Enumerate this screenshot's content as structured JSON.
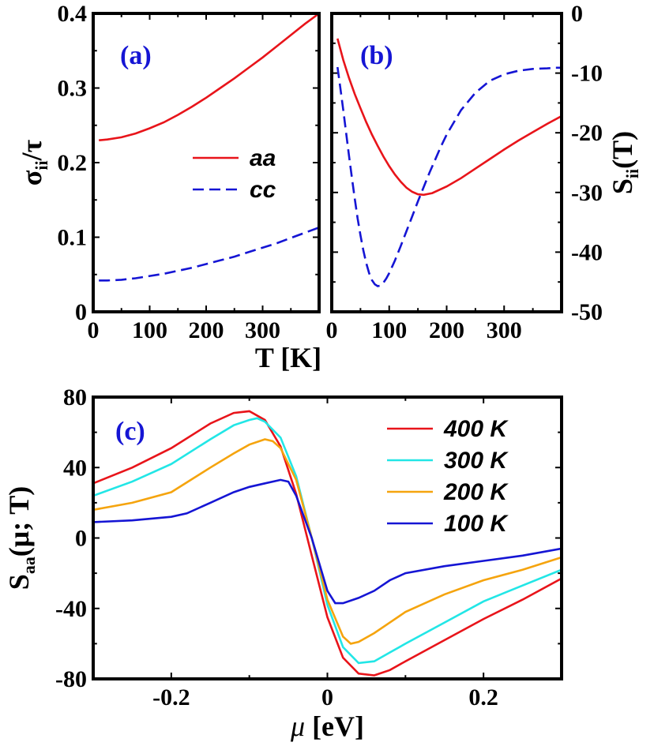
{
  "chart_data": [
    {
      "id": "a",
      "type": "line",
      "panel_label": "(a)",
      "xlim": [
        0,
        400
      ],
      "ylim": [
        0,
        0.4
      ],
      "xticks": [
        0,
        100,
        200,
        300
      ],
      "xtick_labels": [
        "0",
        "100",
        "200",
        "300"
      ],
      "yticks": [
        0,
        0.1,
        0.2,
        0.3,
        0.4
      ],
      "ytick_labels": [
        "0",
        "0.1",
        "0.2",
        "0.3",
        "0.4"
      ],
      "ylabel": {
        "main": "σ",
        "sub": "ii",
        "rest": "/τ"
      },
      "legend_position": "center-right",
      "series": [
        {
          "name": "aa",
          "color": "#e8141a",
          "dash": "solid",
          "x": [
            10,
            25,
            50,
            75,
            100,
            125,
            150,
            175,
            200,
            225,
            250,
            275,
            300,
            325,
            350,
            375,
            400
          ],
          "y": [
            0.23,
            0.231,
            0.234,
            0.239,
            0.246,
            0.254,
            0.264,
            0.275,
            0.287,
            0.3,
            0.313,
            0.327,
            0.341,
            0.356,
            0.371,
            0.386,
            0.4
          ]
        },
        {
          "name": "cc",
          "color": "#1515d4",
          "dash": "dashed",
          "x": [
            10,
            25,
            50,
            75,
            100,
            125,
            150,
            175,
            200,
            225,
            250,
            275,
            300,
            325,
            350,
            375,
            400
          ],
          "y": [
            0.042,
            0.042,
            0.043,
            0.045,
            0.048,
            0.051,
            0.055,
            0.059,
            0.064,
            0.069,
            0.074,
            0.08,
            0.086,
            0.092,
            0.099,
            0.106,
            0.113
          ]
        }
      ]
    },
    {
      "id": "b",
      "type": "line",
      "panel_label": "(b)",
      "xlim": [
        0,
        400
      ],
      "ylim": [
        -50,
        0
      ],
      "xticks": [
        0,
        100,
        200,
        300
      ],
      "xtick_labels": [
        "0",
        "100",
        "200",
        "300"
      ],
      "yticks": [
        -50,
        -40,
        -30,
        -20,
        -10,
        0
      ],
      "ytick_labels": [
        "-50",
        "-40",
        "-30",
        "-20",
        "-10",
        "0"
      ],
      "ylabel": {
        "main": "S",
        "sub": "ii",
        "rest": "(T)"
      },
      "series": [
        {
          "name": "aa",
          "color": "#e8141a",
          "dash": "solid",
          "x": [
            10,
            20,
            30,
            40,
            50,
            60,
            70,
            80,
            90,
            100,
            110,
            120,
            130,
            140,
            150,
            160,
            175,
            200,
            225,
            250,
            275,
            300,
            325,
            350,
            375,
            400
          ],
          "y": [
            -4.2,
            -7.8,
            -10.8,
            -13.5,
            -15.9,
            -18.2,
            -20.3,
            -22.2,
            -24.0,
            -25.6,
            -27.0,
            -28.2,
            -29.2,
            -29.9,
            -30.3,
            -30.4,
            -30.1,
            -29.0,
            -27.6,
            -26.0,
            -24.4,
            -22.8,
            -21.3,
            -19.9,
            -18.5,
            -17.2
          ]
        },
        {
          "name": "cc",
          "color": "#1515d4",
          "dash": "dashed",
          "x": [
            10,
            15,
            20,
            25,
            30,
            35,
            40,
            45,
            50,
            55,
            60,
            65,
            70,
            75,
            80,
            85,
            90,
            95,
            100,
            110,
            120,
            130,
            140,
            150,
            160,
            170,
            180,
            190,
            200,
            225,
            250,
            275,
            300,
            325,
            350,
            375,
            390,
            400
          ],
          "y": [
            -9.0,
            -12.5,
            -16.2,
            -20.0,
            -23.8,
            -27.5,
            -31.0,
            -34.3,
            -37.2,
            -39.7,
            -41.8,
            -43.5,
            -44.7,
            -45.4,
            -45.7,
            -45.6,
            -45.1,
            -44.4,
            -43.5,
            -41.4,
            -39.0,
            -36.5,
            -34.0,
            -31.5,
            -29.1,
            -26.7,
            -24.5,
            -22.3,
            -20.3,
            -16.2,
            -13.3,
            -11.3,
            -10.2,
            -9.6,
            -9.3,
            -9.2,
            -9.1,
            -9.1
          ]
        }
      ]
    },
    {
      "id": "c",
      "type": "line",
      "panel_label": "(c)",
      "xlim": [
        -0.3,
        0.3
      ],
      "ylim": [
        -80,
        80
      ],
      "xticks": [
        -0.2,
        0,
        0.2
      ],
      "xtick_labels": [
        "-0.2",
        "0",
        "0.2"
      ],
      "yticks": [
        -80,
        -40,
        0,
        40,
        80
      ],
      "ytick_labels": [
        "-80",
        "-40",
        "0",
        "40",
        "80"
      ],
      "xlabel": {
        "main": "μ",
        "rest": " [eV]"
      },
      "ylabel": {
        "main": "S",
        "sub": "aa",
        "rest": "(μ; T)"
      },
      "legend_position": "top-right",
      "series": [
        {
          "name": "400 K",
          "color": "#e8141a",
          "x": [
            -0.3,
            -0.25,
            -0.2,
            -0.15,
            -0.12,
            -0.1,
            -0.08,
            -0.06,
            -0.04,
            -0.02,
            0.0,
            0.02,
            0.04,
            0.06,
            0.08,
            0.1,
            0.15,
            0.2,
            0.25,
            0.3
          ],
          "y": [
            31,
            40,
            51,
            65,
            71,
            72,
            67,
            52,
            25,
            -10,
            -45,
            -68,
            -77,
            -78,
            -75,
            -70,
            -58,
            -46,
            -35,
            -23
          ]
        },
        {
          "name": "300 K",
          "color": "#22e6e6",
          "x": [
            -0.3,
            -0.25,
            -0.2,
            -0.15,
            -0.12,
            -0.1,
            -0.09,
            -0.08,
            -0.06,
            -0.04,
            -0.02,
            0.0,
            0.02,
            0.04,
            0.06,
            0.08,
            0.1,
            0.15,
            0.2,
            0.25,
            0.3
          ],
          "y": [
            24,
            32,
            42,
            56,
            64,
            67,
            68,
            66,
            57,
            35,
            0,
            -38,
            -62,
            -71,
            -70,
            -65,
            -60,
            -48,
            -36,
            -27,
            -18
          ]
        },
        {
          "name": "200 K",
          "color": "#f5a40e",
          "x": [
            -0.3,
            -0.25,
            -0.2,
            -0.15,
            -0.12,
            -0.1,
            -0.08,
            -0.07,
            -0.06,
            -0.04,
            -0.02,
            0.0,
            0.02,
            0.03,
            0.04,
            0.06,
            0.08,
            0.1,
            0.15,
            0.2,
            0.25,
            0.3
          ],
          "y": [
            16,
            20,
            26,
            40,
            48,
            53,
            56,
            55,
            51,
            33,
            0,
            -35,
            -56,
            -60,
            -59,
            -54,
            -48,
            -42,
            -32,
            -24,
            -18,
            -11
          ]
        },
        {
          "name": "100 K",
          "color": "#1515d4",
          "x": [
            -0.3,
            -0.25,
            -0.2,
            -0.18,
            -0.15,
            -0.12,
            -0.1,
            -0.08,
            -0.06,
            -0.05,
            -0.04,
            -0.02,
            0.0,
            0.01,
            0.02,
            0.04,
            0.06,
            0.08,
            0.1,
            0.15,
            0.2,
            0.25,
            0.3
          ],
          "y": [
            9,
            10,
            12,
            14,
            20,
            26,
            29,
            31,
            33,
            32,
            24,
            0,
            -30,
            -37,
            -37,
            -34,
            -30,
            -24,
            -20,
            -16,
            -13,
            -10,
            -6
          ]
        }
      ]
    }
  ],
  "shared_xlabel": "T [K]"
}
